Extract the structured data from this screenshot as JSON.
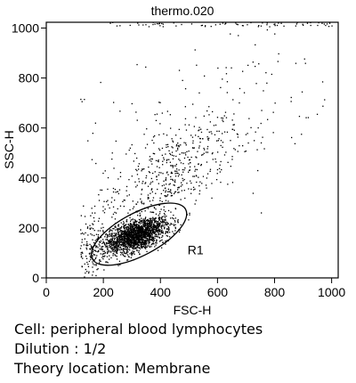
{
  "chart_data": {
    "type": "scatter",
    "title": "thermo.020",
    "xlabel": "FSC-H",
    "ylabel": "SSC-H",
    "xlim": [
      0,
      1023
    ],
    "ylim": [
      0,
      1023
    ],
    "xticks": [
      0,
      200,
      400,
      600,
      800,
      1000
    ],
    "yticks": [
      0,
      200,
      400,
      600,
      800,
      1000
    ],
    "grid": false,
    "gate": {
      "label": "R1",
      "shape": "ellipse",
      "center": [
        325,
        175
      ],
      "semi_axes": [
        185,
        85
      ],
      "rotation_deg": 28
    },
    "populations": [
      {
        "name": "",
        "center": [
          315,
          170
        ],
        "spread": [
          55,
          35
        ],
        "correlation": 0.55,
        "count": 1900
      },
      {
        "name": "",
        "center": [
          430,
          420
        ],
        "spread": [
          130,
          120
        ],
        "correlation": 0.6,
        "count": 520
      },
      {
        "name": "",
        "center": [
          160,
          120
        ],
        "spread": [
          25,
          60
        ],
        "correlation": 0.1,
        "count": 140
      },
      {
        "name": "",
        "center": [
          620,
          720
        ],
        "spread": [
          210,
          170
        ],
        "correlation": 0.3,
        "count": 110
      }
    ]
  },
  "captions": {
    "cell": "Cell: peripheral blood lymphocytes",
    "dilution": "Dilution : 1/2",
    "location": "Theory location: Membrane"
  }
}
